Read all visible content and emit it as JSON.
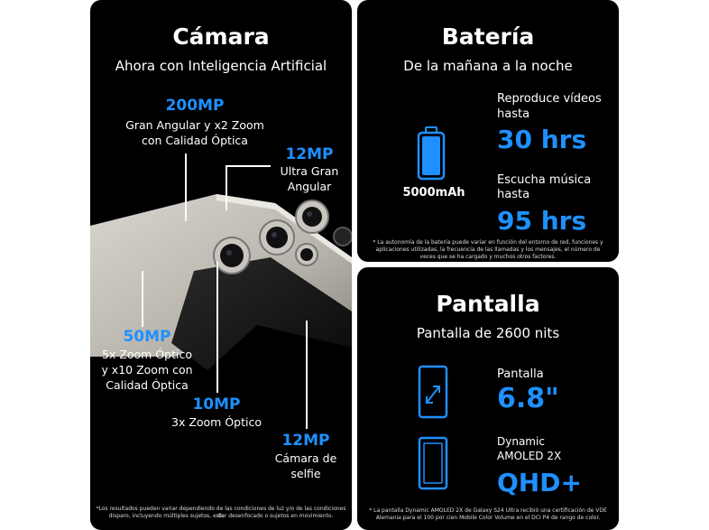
{
  "camera": {
    "title": "Cámara",
    "subtitle": "Ahora con Inteligencia Artificial",
    "mp200": {
      "value": "200MP",
      "line1": "Gran Angular y x2 Zoom",
      "line2": "con Calidad Óptica"
    },
    "mp12a": {
      "value": "12MP",
      "line1": "Ultra Gran",
      "line2": "Angular"
    },
    "mp50": {
      "value": "50MP",
      "line1": "5x Zoom Óptico",
      "line2": "y x10 Zoom con",
      "line3": "Calidad Óptica"
    },
    "mp10": {
      "value": "10MP",
      "line1": "3x Zoom Óptico"
    },
    "mp12b": {
      "value": "12MP",
      "line1": "Cámara de",
      "line2": "selfie"
    },
    "footnote1": "*Los resultados pueden variar dependiendo de las condiciones de luz y/o de las condiciones de",
    "footnote2": "disparo, incluyendo múltiples sujetos, estar desenfocado o sujetos en movimiento."
  },
  "battery": {
    "title": "Batería",
    "subtitle": "De la mañana a la noche",
    "capacity": "5000mAh",
    "video_label1": "Reproduce vídeos",
    "video_label2": "hasta",
    "video_value": "30 hrs",
    "music_label1": "Escucha música",
    "music_label2": "hasta",
    "music_value": "95 hrs",
    "footnote1": "* La autonomía de la batería puede variar en función del entorno de red, funciones y",
    "footnote2": "aplicaciones utilizadas, la frecuencia de las llamadas y los mensajes, el número de",
    "footnote3": "veces que se ha cargado y muchos otros factores.",
    "level": 1.0
  },
  "screen": {
    "title": "Pantalla",
    "subtitle": "Pantalla de 2600 nits",
    "size_label": "Pantalla",
    "size_value": "6.8\"",
    "res_label1": "Dynamic",
    "res_label2": "AMOLED 2X",
    "res_value": "QHD+",
    "footnote1": "* La pantalla Dynamic AMOLED 2X de Galaxy S24 Ultra recibió una certificación de VDE",
    "footnote2": "Alemania para el 100 por cien Mobile Color Volume en el DCI P4 de rango de color."
  },
  "colors": {
    "accent": "#1e90ff",
    "background": "#000000"
  }
}
